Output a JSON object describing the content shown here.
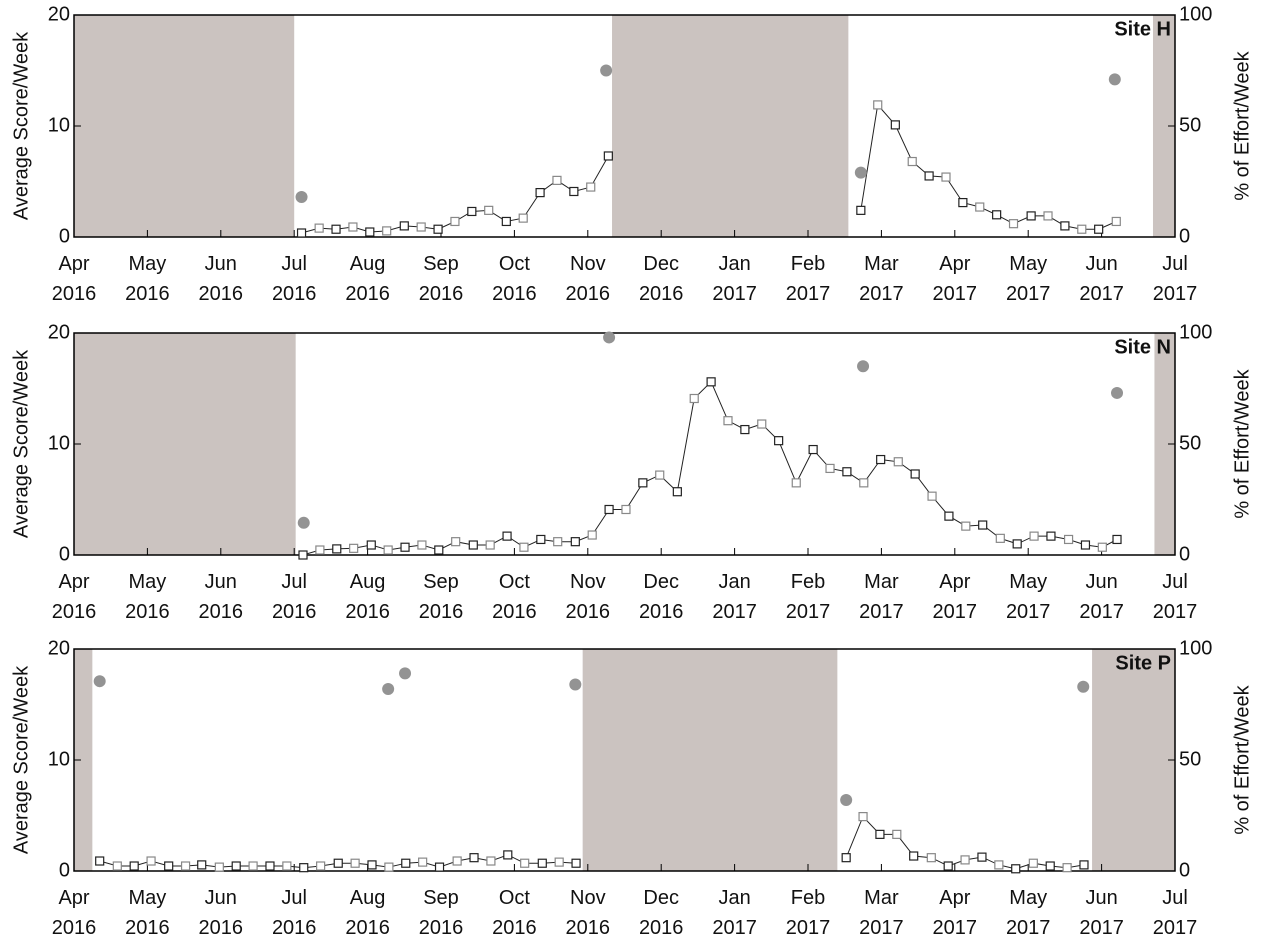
{
  "chart_data": [
    {
      "type": "line",
      "title": "Site H",
      "ylabel": "Average Score/Week",
      "y2label": "% of Effort/Week",
      "xlim": [
        0,
        15
      ],
      "ylim": [
        0,
        20
      ],
      "y2lim": [
        0,
        100
      ],
      "yticks": [
        0,
        10,
        20
      ],
      "y2ticks": [
        0,
        50,
        100
      ],
      "xticks": [
        {
          "value": 0,
          "label": "Apr\n2016"
        },
        {
          "value": 1,
          "label": "May\n2016"
        },
        {
          "value": 2,
          "label": "Jun\n2016"
        },
        {
          "value": 3,
          "label": "Jul\n2016"
        },
        {
          "value": 4,
          "label": "Aug\n2016"
        },
        {
          "value": 5,
          "label": "Sep\n2016"
        },
        {
          "value": 6,
          "label": "Oct\n2016"
        },
        {
          "value": 7,
          "label": "Nov\n2016"
        },
        {
          "value": 8,
          "label": "Dec\n2016"
        },
        {
          "value": 9,
          "label": "Jan\n2017"
        },
        {
          "value": 10,
          "label": "Feb\n2017"
        },
        {
          "value": 11,
          "label": "Mar\n2017"
        },
        {
          "value": 12,
          "label": "Apr\n2017"
        },
        {
          "value": 13,
          "label": "May\n2017"
        },
        {
          "value": 14,
          "label": "Jun\n2017"
        },
        {
          "value": 15,
          "label": "Jul\n2017"
        }
      ],
      "shaded": [
        [
          0,
          3.0
        ],
        [
          7.33,
          10.55
        ],
        [
          14.7,
          15
        ]
      ],
      "shade_color": "#cbc3c0",
      "series": [
        {
          "color": "#222222",
          "x": [
            3.1,
            3.34,
            3.57,
            3.8,
            4.03,
            4.26,
            4.5,
            4.73,
            4.96,
            5.19,
            5.42,
            5.65,
            5.89,
            6.12,
            6.35,
            6.58,
            6.81,
            7.04,
            7.28,
            null,
            10.72,
            10.95,
            11.19,
            11.42,
            11.65,
            11.88,
            12.11,
            12.34,
            12.57,
            12.8,
            13.04,
            13.27,
            13.5,
            13.73,
            13.96,
            14.2
          ],
          "values": [
            0.36,
            0.8,
            0.7,
            0.9,
            0.45,
            0.55,
            1.0,
            0.9,
            0.7,
            1.4,
            2.3,
            2.4,
            1.4,
            1.7,
            4.0,
            5.1,
            4.1,
            4.5,
            7.3,
            null,
            2.4,
            11.9,
            10.1,
            6.8,
            5.5,
            5.4,
            3.1,
            2.7,
            2.0,
            1.2,
            1.9,
            1.9,
            1.0,
            0.7,
            0.7,
            1.4
          ]
        },
        {
          "color": "#939393",
          "axis": "y2",
          "x": [
            3.1,
            7.25,
            10.72,
            14.18
          ],
          "values": [
            18,
            75,
            29,
            71
          ]
        }
      ]
    },
    {
      "type": "line",
      "title": "Site N",
      "ylabel": "Average Score/Week",
      "y2label": "% of Effort/Week",
      "xlim": [
        0,
        15
      ],
      "ylim": [
        0,
        20
      ],
      "y2lim": [
        0,
        100
      ],
      "yticks": [
        0,
        10,
        20
      ],
      "y2ticks": [
        0,
        50,
        100
      ],
      "xticks": [
        {
          "value": 0,
          "label": "Apr\n2016"
        },
        {
          "value": 1,
          "label": "May\n2016"
        },
        {
          "value": 2,
          "label": "Jun\n2016"
        },
        {
          "value": 3,
          "label": "Jul\n2016"
        },
        {
          "value": 4,
          "label": "Aug\n2016"
        },
        {
          "value": 5,
          "label": "Sep\n2016"
        },
        {
          "value": 6,
          "label": "Oct\n2016"
        },
        {
          "value": 7,
          "label": "Nov\n2016"
        },
        {
          "value": 8,
          "label": "Dec\n2016"
        },
        {
          "value": 9,
          "label": "Jan\n2017"
        },
        {
          "value": 10,
          "label": "Feb\n2017"
        },
        {
          "value": 11,
          "label": "Mar\n2017"
        },
        {
          "value": 12,
          "label": "Apr\n2017"
        },
        {
          "value": 13,
          "label": "May\n2017"
        },
        {
          "value": 14,
          "label": "Jun\n2017"
        },
        {
          "value": 15,
          "label": "Jul\n2017"
        }
      ],
      "shaded": [
        [
          0,
          3.02
        ],
        [
          14.72,
          15
        ]
      ],
      "shade_color": "#cbc3c0",
      "series": [
        {
          "color": "#222222",
          "x": [
            3.12,
            3.35,
            3.58,
            3.81,
            4.05,
            4.28,
            4.51,
            4.74,
            4.97,
            5.2,
            5.44,
            5.67,
            5.9,
            6.13,
            6.36,
            6.59,
            6.83,
            7.06,
            7.29,
            7.52,
            7.75,
            7.98,
            8.22,
            8.45,
            8.68,
            8.91,
            9.14,
            9.37,
            9.6,
            9.84,
            10.07,
            10.3,
            10.53,
            10.76,
            10.99,
            11.23,
            11.46,
            11.69,
            11.92,
            12.15,
            12.38,
            12.62,
            12.85,
            13.08,
            13.31,
            13.55,
            13.78,
            14.01,
            14.21
          ],
          "values": [
            0.0,
            0.45,
            0.55,
            0.6,
            0.9,
            0.45,
            0.7,
            0.9,
            0.45,
            1.2,
            0.9,
            0.9,
            1.7,
            0.7,
            1.4,
            1.2,
            1.2,
            1.8,
            4.1,
            4.1,
            6.5,
            7.2,
            5.7,
            14.1,
            15.6,
            12.1,
            11.3,
            11.8,
            10.3,
            6.5,
            9.5,
            7.8,
            7.5,
            6.5,
            8.6,
            8.4,
            7.3,
            5.3,
            3.5,
            2.6,
            2.7,
            1.5,
            1.0,
            1.7,
            1.7,
            1.4,
            0.9,
            0.7,
            1.4
          ]
        },
        {
          "color": "#939393",
          "axis": "y2",
          "x": [
            3.13,
            7.29,
            10.75,
            14.21
          ],
          "values": [
            14.5,
            98,
            85,
            73
          ]
        }
      ]
    },
    {
      "type": "line",
      "title": "Site P",
      "ylabel": "Average Score/Week",
      "y2label": "% of Effort/Week",
      "xlim": [
        0,
        15
      ],
      "ylim": [
        0,
        20
      ],
      "y2lim": [
        0,
        100
      ],
      "yticks": [
        0,
        10,
        20
      ],
      "y2ticks": [
        0,
        50,
        100
      ],
      "xticks": [
        {
          "value": 0,
          "label": "Apr\n2016"
        },
        {
          "value": 1,
          "label": "May\n2016"
        },
        {
          "value": 2,
          "label": "Jun\n2016"
        },
        {
          "value": 3,
          "label": "Jul\n2016"
        },
        {
          "value": 4,
          "label": "Aug\n2016"
        },
        {
          "value": 5,
          "label": "Sep\n2016"
        },
        {
          "value": 6,
          "label": "Oct\n2016"
        },
        {
          "value": 7,
          "label": "Nov\n2016"
        },
        {
          "value": 8,
          "label": "Dec\n2016"
        },
        {
          "value": 9,
          "label": "Jan\n2017"
        },
        {
          "value": 10,
          "label": "Feb\n2017"
        },
        {
          "value": 11,
          "label": "Mar\n2017"
        },
        {
          "value": 12,
          "label": "Apr\n2017"
        },
        {
          "value": 13,
          "label": "May\n2017"
        },
        {
          "value": 14,
          "label": "Jun\n2017"
        },
        {
          "value": 15,
          "label": "Jul\n2017"
        }
      ],
      "shaded": [
        [
          0,
          0.25
        ],
        [
          6.93,
          10.4
        ],
        [
          13.87,
          15
        ]
      ],
      "shade_color": "#cbc3c0",
      "series": [
        {
          "color": "#222222",
          "x": [
            0.35,
            0.59,
            0.82,
            1.05,
            1.29,
            1.52,
            1.74,
            1.98,
            2.21,
            2.44,
            2.67,
            2.9,
            3.13,
            3.36,
            3.6,
            3.83,
            4.06,
            4.29,
            4.52,
            4.75,
            4.98,
            5.22,
            5.45,
            5.68,
            5.91,
            6.14,
            6.38,
            6.61,
            6.84,
            null,
            10.52,
            10.75,
            10.98,
            11.21,
            11.44,
            11.68,
            11.91,
            12.14,
            12.37,
            12.6,
            12.83,
            13.07,
            13.3,
            13.53,
            13.76
          ],
          "values": [
            0.9,
            0.45,
            0.45,
            0.9,
            0.45,
            0.45,
            0.55,
            0.35,
            0.45,
            0.45,
            0.45,
            0.45,
            0.3,
            0.45,
            0.7,
            0.7,
            0.55,
            0.35,
            0.7,
            0.8,
            0.35,
            0.9,
            1.2,
            0.9,
            1.45,
            0.7,
            0.7,
            0.8,
            0.7,
            null,
            1.2,
            4.9,
            3.3,
            3.3,
            1.35,
            1.2,
            0.45,
            1.0,
            1.25,
            0.55,
            0.2,
            0.7,
            0.45,
            0.3,
            0.55
          ]
        },
        {
          "color": "#939393",
          "axis": "y2",
          "x": [
            0.35,
            4.28,
            4.51,
            6.83,
            10.52,
            13.75
          ],
          "values": [
            85.5,
            82,
            89,
            84,
            32,
            83
          ]
        }
      ]
    }
  ]
}
